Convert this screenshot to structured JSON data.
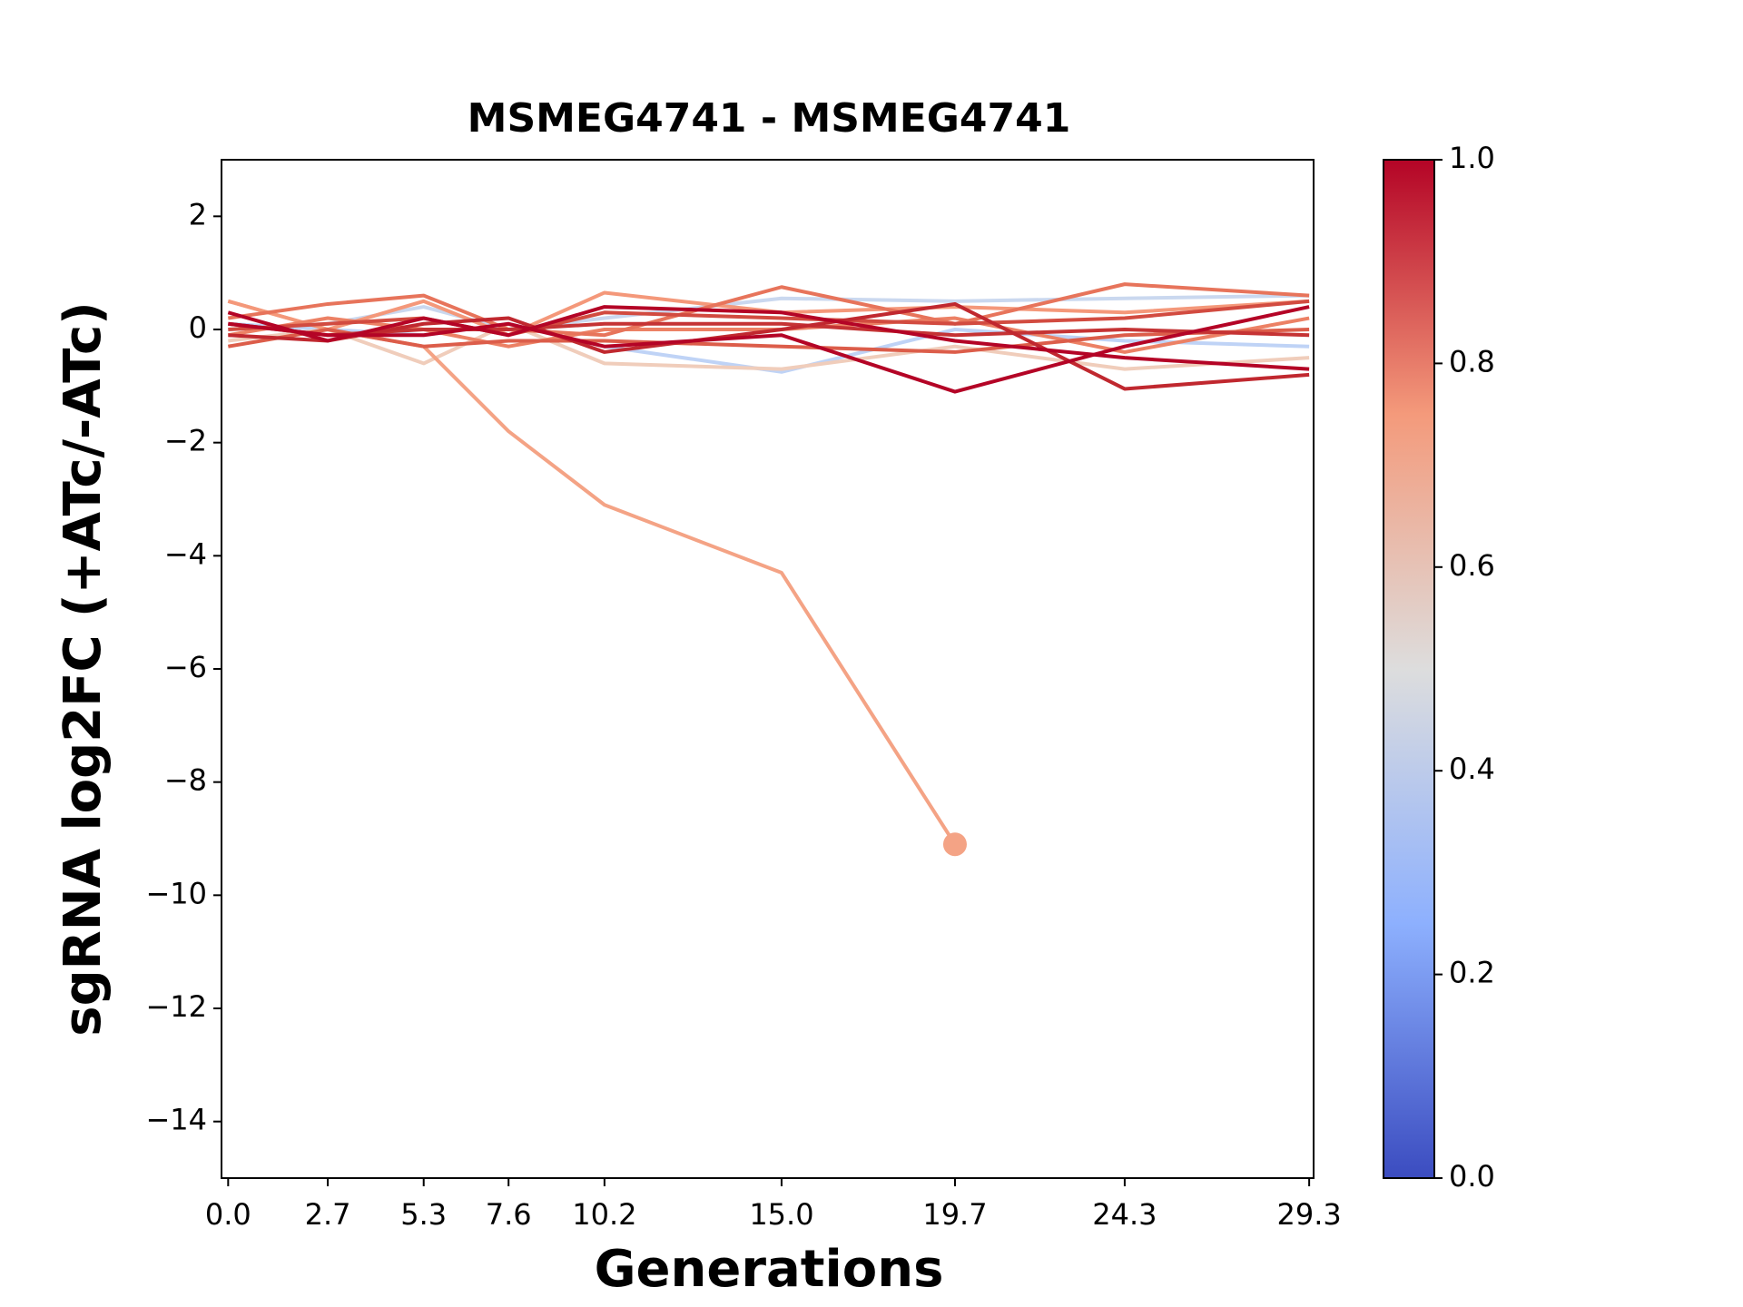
{
  "chart_data": {
    "type": "line",
    "title": "MSMEG4741 - MSMEG4741",
    "x_label": "Generations",
    "y_label": "sgRNA log2FC (+ATc/-ATc)",
    "x": [
      0.0,
      2.7,
      5.3,
      7.6,
      10.2,
      15.0,
      19.7,
      24.3,
      29.3
    ],
    "xlim": [
      -0.18,
      29.42
    ],
    "xticks": [
      {
        "value": 0.0,
        "label": "0.0"
      },
      {
        "value": 2.7,
        "label": "2.7"
      },
      {
        "value": 5.3,
        "label": "5.3"
      },
      {
        "value": 7.6,
        "label": "7.6"
      },
      {
        "value": 10.2,
        "label": "10.2"
      },
      {
        "value": 15.0,
        "label": "15.0"
      },
      {
        "value": 19.7,
        "label": "19.7"
      },
      {
        "value": 24.3,
        "label": "24.3"
      },
      {
        "value": 29.3,
        "label": "29.3"
      }
    ],
    "ylim": [
      -15,
      3
    ],
    "yticks": [
      {
        "value": -14,
        "label": "−14"
      },
      {
        "value": -12,
        "label": "−12"
      },
      {
        "value": -10,
        "label": "−10"
      },
      {
        "value": -8,
        "label": "−8"
      },
      {
        "value": -6,
        "label": "−6"
      },
      {
        "value": -4,
        "label": "−4"
      },
      {
        "value": -2,
        "label": "−2"
      },
      0,
      2
    ],
    "colorbar": {
      "colormap": "coolwarm",
      "lim": [
        0,
        1
      ],
      "ticks": [
        {
          "value": 0,
          "label": "0.0"
        },
        {
          "value": 0.2,
          "label": "0.2"
        },
        {
          "value": 0.4,
          "label": "0.4"
        },
        {
          "value": 0.6,
          "label": "0.6"
        },
        {
          "value": 0.8,
          "label": "0.8"
        },
        {
          "value": 1,
          "label": "1.0"
        }
      ]
    },
    "series": [
      {
        "color": "#cad8ef",
        "values": [
          0.0,
          0.1,
          0.4,
          0.0,
          0.2,
          0.55,
          0.5,
          0.55,
          0.6
        ]
      },
      {
        "color": "#bfd3f6",
        "values": [
          0.1,
          0.0,
          -0.1,
          0.1,
          -0.3,
          -0.75,
          0.0,
          -0.2,
          -0.3
        ]
      },
      {
        "color": "#f0cdbb",
        "values": [
          -0.2,
          0.0,
          -0.6,
          0.1,
          -0.6,
          -0.7,
          -0.3,
          -0.7,
          -0.5
        ]
      },
      {
        "color": "#f4a385",
        "values": [
          0.5,
          0.0,
          -0.3,
          -1.8,
          -3.1,
          -4.3,
          -9.1,
          null,
          null
        ],
        "end_marker": true
      },
      {
        "color": "#f4987a",
        "values": [
          0.5,
          0.0,
          0.5,
          -0.1,
          0.65,
          0.3,
          0.4,
          0.3,
          0.5
        ]
      },
      {
        "color": "#ec8165",
        "values": [
          -0.1,
          0.2,
          0.0,
          -0.3,
          0.0,
          0.0,
          0.2,
          -0.4,
          0.2
        ]
      },
      {
        "color": "#e7745b",
        "values": [
          0.2,
          0.45,
          0.6,
          0.0,
          -0.1,
          0.75,
          0.1,
          0.8,
          0.6
        ]
      },
      {
        "color": "#dc5d4a",
        "values": [
          -0.3,
          0.0,
          -0.3,
          -0.2,
          -0.2,
          -0.3,
          -0.4,
          -0.1,
          0.0
        ]
      },
      {
        "color": "#d24b40",
        "values": [
          0.0,
          0.1,
          0.2,
          -0.1,
          0.3,
          0.2,
          0.1,
          0.2,
          0.5
        ]
      },
      {
        "color": "#c53334",
        "values": [
          0.1,
          -0.1,
          0.0,
          0.0,
          0.1,
          0.1,
          -0.1,
          0.0,
          -0.1
        ]
      },
      {
        "color": "#c0282f",
        "values": [
          -0.1,
          -0.2,
          0.1,
          0.2,
          -0.4,
          0.0,
          0.45,
          -1.05,
          -0.8
        ]
      },
      {
        "color": "#b40426",
        "values": [
          0.1,
          -0.1,
          -0.1,
          0.1,
          -0.3,
          -0.1,
          -1.1,
          -0.3,
          0.4
        ]
      },
      {
        "color": "#b40426",
        "values": [
          0.3,
          -0.2,
          0.2,
          -0.1,
          0.4,
          0.3,
          -0.2,
          -0.5,
          -0.7
        ]
      }
    ]
  }
}
